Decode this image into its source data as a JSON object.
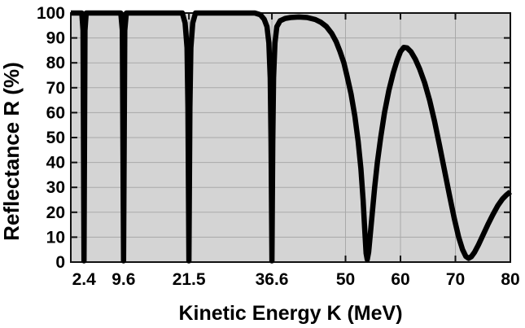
{
  "chart_data": {
    "type": "line",
    "title": "",
    "xlabel": "Kinetic Energy K (MeV)",
    "ylabel": "Reflectance R (%)",
    "xlim": [
      0,
      80
    ],
    "ylim": [
      0,
      100
    ],
    "grid": true,
    "legend": false,
    "plot_background": "#d4d4d4",
    "grid_color": "#a9a9a9",
    "frame_color": "#111111",
    "line_color": "#000000",
    "line_width": 6.5,
    "tick_length": 8,
    "x_ticks": [
      {
        "value": 2.4,
        "label": "2.4"
      },
      {
        "value": 9.6,
        "label": "9.6"
      },
      {
        "value": 21.5,
        "label": "21.5"
      },
      {
        "value": 36.6,
        "label": "36.6"
      },
      {
        "value": 50,
        "label": "50"
      },
      {
        "value": 60,
        "label": "60"
      },
      {
        "value": 70,
        "label": "70"
      },
      {
        "value": 80,
        "label": "80"
      }
    ],
    "y_ticks": [
      {
        "value": 0,
        "label": "0"
      },
      {
        "value": 10,
        "label": "10"
      },
      {
        "value": 20,
        "label": "20"
      },
      {
        "value": 30,
        "label": "30"
      },
      {
        "value": 40,
        "label": "40"
      },
      {
        "value": 50,
        "label": "50"
      },
      {
        "value": 60,
        "label": "60"
      },
      {
        "value": 70,
        "label": "70"
      },
      {
        "value": 80,
        "label": "80"
      },
      {
        "value": 90,
        "label": "90"
      },
      {
        "value": 100,
        "label": "100"
      }
    ],
    "series": [
      {
        "name": "Reflectance",
        "note": "Resonant transmission dips at K = 2.4, 9.6, 21.5, 36.6 MeV (sharp, reach 0), broad dips near 54 and 72 MeV",
        "points": [
          [
            0,
            100
          ],
          [
            1.2,
            100
          ],
          [
            2.0,
            100
          ],
          [
            2.22,
            93
          ],
          [
            2.4,
            0.5
          ],
          [
            2.58,
            93
          ],
          [
            2.8,
            100
          ],
          [
            4,
            100
          ],
          [
            6,
            100
          ],
          [
            8,
            100
          ],
          [
            9.1,
            100
          ],
          [
            9.38,
            93
          ],
          [
            9.6,
            0.5
          ],
          [
            9.82,
            93
          ],
          [
            10.1,
            100
          ],
          [
            12,
            100
          ],
          [
            15,
            100
          ],
          [
            18,
            100
          ],
          [
            20.3,
            100
          ],
          [
            20.8,
            96
          ],
          [
            21.15,
            86
          ],
          [
            21.32,
            62
          ],
          [
            21.5,
            0.5
          ],
          [
            21.68,
            62
          ],
          [
            21.85,
            86
          ],
          [
            22.2,
            96
          ],
          [
            22.7,
            100
          ],
          [
            25,
            100
          ],
          [
            28,
            100
          ],
          [
            31,
            100
          ],
          [
            33.5,
            100
          ],
          [
            34.5,
            99.3
          ],
          [
            35.2,
            97.5
          ],
          [
            35.7,
            94.5
          ],
          [
            36.05,
            88
          ],
          [
            36.3,
            74
          ],
          [
            36.45,
            48
          ],
          [
            36.6,
            0.5
          ],
          [
            36.75,
            48
          ],
          [
            36.9,
            74
          ],
          [
            37.15,
            88
          ],
          [
            37.5,
            94.5
          ],
          [
            38.1,
            96.9
          ],
          [
            39,
            97.8
          ],
          [
            40,
            98.2
          ],
          [
            41.5,
            98.4
          ],
          [
            43,
            98.2
          ],
          [
            44.5,
            97.4
          ],
          [
            45.5,
            96.3
          ],
          [
            46.5,
            94.6
          ],
          [
            47.5,
            91.8
          ],
          [
            48.3,
            88.5
          ],
          [
            49,
            84.5
          ],
          [
            49.7,
            80
          ],
          [
            50.3,
            74.5
          ],
          [
            51,
            67.5
          ],
          [
            51.7,
            58.5
          ],
          [
            52.3,
            48.5
          ],
          [
            52.8,
            37.5
          ],
          [
            53.2,
            25
          ],
          [
            53.5,
            13
          ],
          [
            53.75,
            3.5
          ],
          [
            53.95,
            1
          ],
          [
            54.2,
            4
          ],
          [
            54.5,
            11
          ],
          [
            54.9,
            20.5
          ],
          [
            55.3,
            30
          ],
          [
            55.8,
            40
          ],
          [
            56.4,
            50
          ],
          [
            57.1,
            60
          ],
          [
            57.9,
            69
          ],
          [
            58.7,
            76
          ],
          [
            59.4,
            81
          ],
          [
            60,
            84.5
          ],
          [
            60.6,
            86.2
          ],
          [
            61.2,
            86
          ],
          [
            61.9,
            84.5
          ],
          [
            62.7,
            81.5
          ],
          [
            63.5,
            77.5
          ],
          [
            64.4,
            72
          ],
          [
            65.3,
            65
          ],
          [
            66.2,
            56.5
          ],
          [
            67.1,
            47
          ],
          [
            68,
            37
          ],
          [
            68.9,
            27
          ],
          [
            69.8,
            17.5
          ],
          [
            70.6,
            10
          ],
          [
            71.3,
            5
          ],
          [
            71.9,
            2.3
          ],
          [
            72.4,
            1.5
          ],
          [
            72.9,
            2.2
          ],
          [
            73.5,
            4
          ],
          [
            74.2,
            7
          ],
          [
            75,
            10.8
          ],
          [
            75.9,
            15
          ],
          [
            76.8,
            19
          ],
          [
            77.7,
            22.6
          ],
          [
            78.6,
            25.4
          ],
          [
            79.3,
            27
          ],
          [
            80,
            28.2
          ]
        ]
      }
    ]
  }
}
